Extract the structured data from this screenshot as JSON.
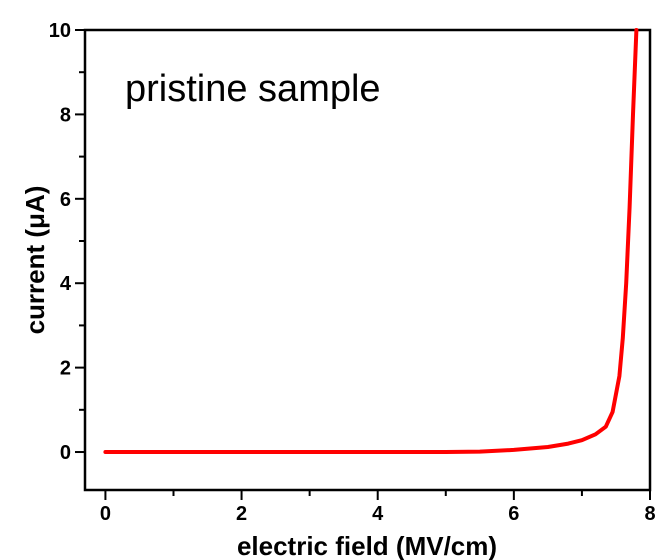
{
  "chart_data": {
    "type": "line",
    "title": "",
    "annotation": "pristine sample",
    "xlabel": "electric field (MV/cm)",
    "ylabel": "current (μA)",
    "xlim": [
      -0.3,
      8
    ],
    "ylim": [
      -0.9,
      10
    ],
    "x_ticks": [
      0,
      2,
      4,
      6,
      8
    ],
    "x_tick_labels": [
      "0",
      "2",
      "4",
      "6",
      "8"
    ],
    "x_minor_ticks": [
      1,
      3,
      5,
      7
    ],
    "y_ticks": [
      0,
      2,
      4,
      6,
      8,
      10
    ],
    "y_tick_labels": [
      "0",
      "2",
      "4",
      "6",
      "8",
      "10"
    ],
    "y_minor_ticks": [
      1,
      3,
      5,
      7,
      9
    ],
    "grid": false,
    "legend": "none",
    "series": [
      {
        "color": "#ff0000",
        "x": [
          0,
          1,
          2,
          3,
          4,
          5,
          5.5,
          6.0,
          6.5,
          6.8,
          7.0,
          7.2,
          7.35,
          7.45,
          7.55,
          7.6,
          7.65,
          7.7,
          7.75,
          7.8
        ],
        "y": [
          0,
          0,
          0,
          0,
          0,
          0,
          0.01,
          0.05,
          0.12,
          0.2,
          0.28,
          0.42,
          0.6,
          0.95,
          1.8,
          2.7,
          4.0,
          5.8,
          8.0,
          10.0
        ]
      }
    ]
  }
}
